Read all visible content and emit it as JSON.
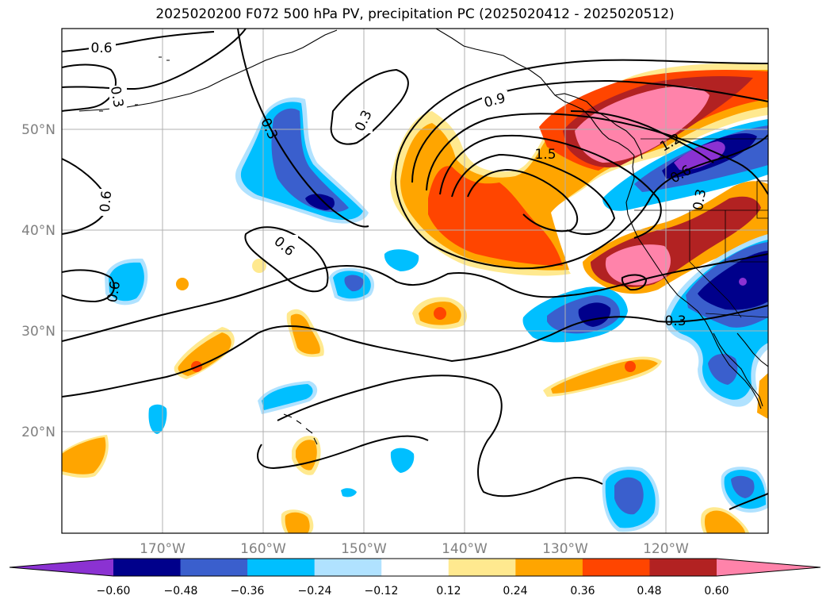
{
  "title": "2025020200 F072 500 hPa PV, precipitation PC (2025020412 - 2025020512)",
  "map": {
    "lat_labels": [
      "50°N",
      "40°N",
      "30°N",
      "20°N"
    ],
    "lon_labels": [
      "170°W",
      "160°W",
      "150°W",
      "140°W",
      "130°W",
      "120°W"
    ],
    "pv_contour_labels": [
      "0.6",
      "0.3",
      "0.3",
      "0.9",
      "1.5",
      "0.6",
      "0.6",
      "0.6",
      "0.3",
      "0.3",
      "0.3",
      "1.2",
      "0.6"
    ]
  },
  "colorbar": {
    "ticks": [
      "−0.60",
      "−0.48",
      "−0.36",
      "−0.24",
      "−0.12",
      "0.12",
      "0.24",
      "0.36",
      "0.48",
      "0.60"
    ],
    "colors": [
      "#8b32d2",
      "#00008b",
      "#3a5fcd",
      "#00bfff",
      "#b0e2ff",
      "#ffffff",
      "#ffe98f",
      "#ffa500",
      "#ff4500",
      "#b22222",
      "#ff83aa"
    ]
  },
  "colors": {
    "grid": "#b0b0b0",
    "coast": "#000000",
    "pv_contour": "#000000",
    "axis_label": "#808080"
  }
}
